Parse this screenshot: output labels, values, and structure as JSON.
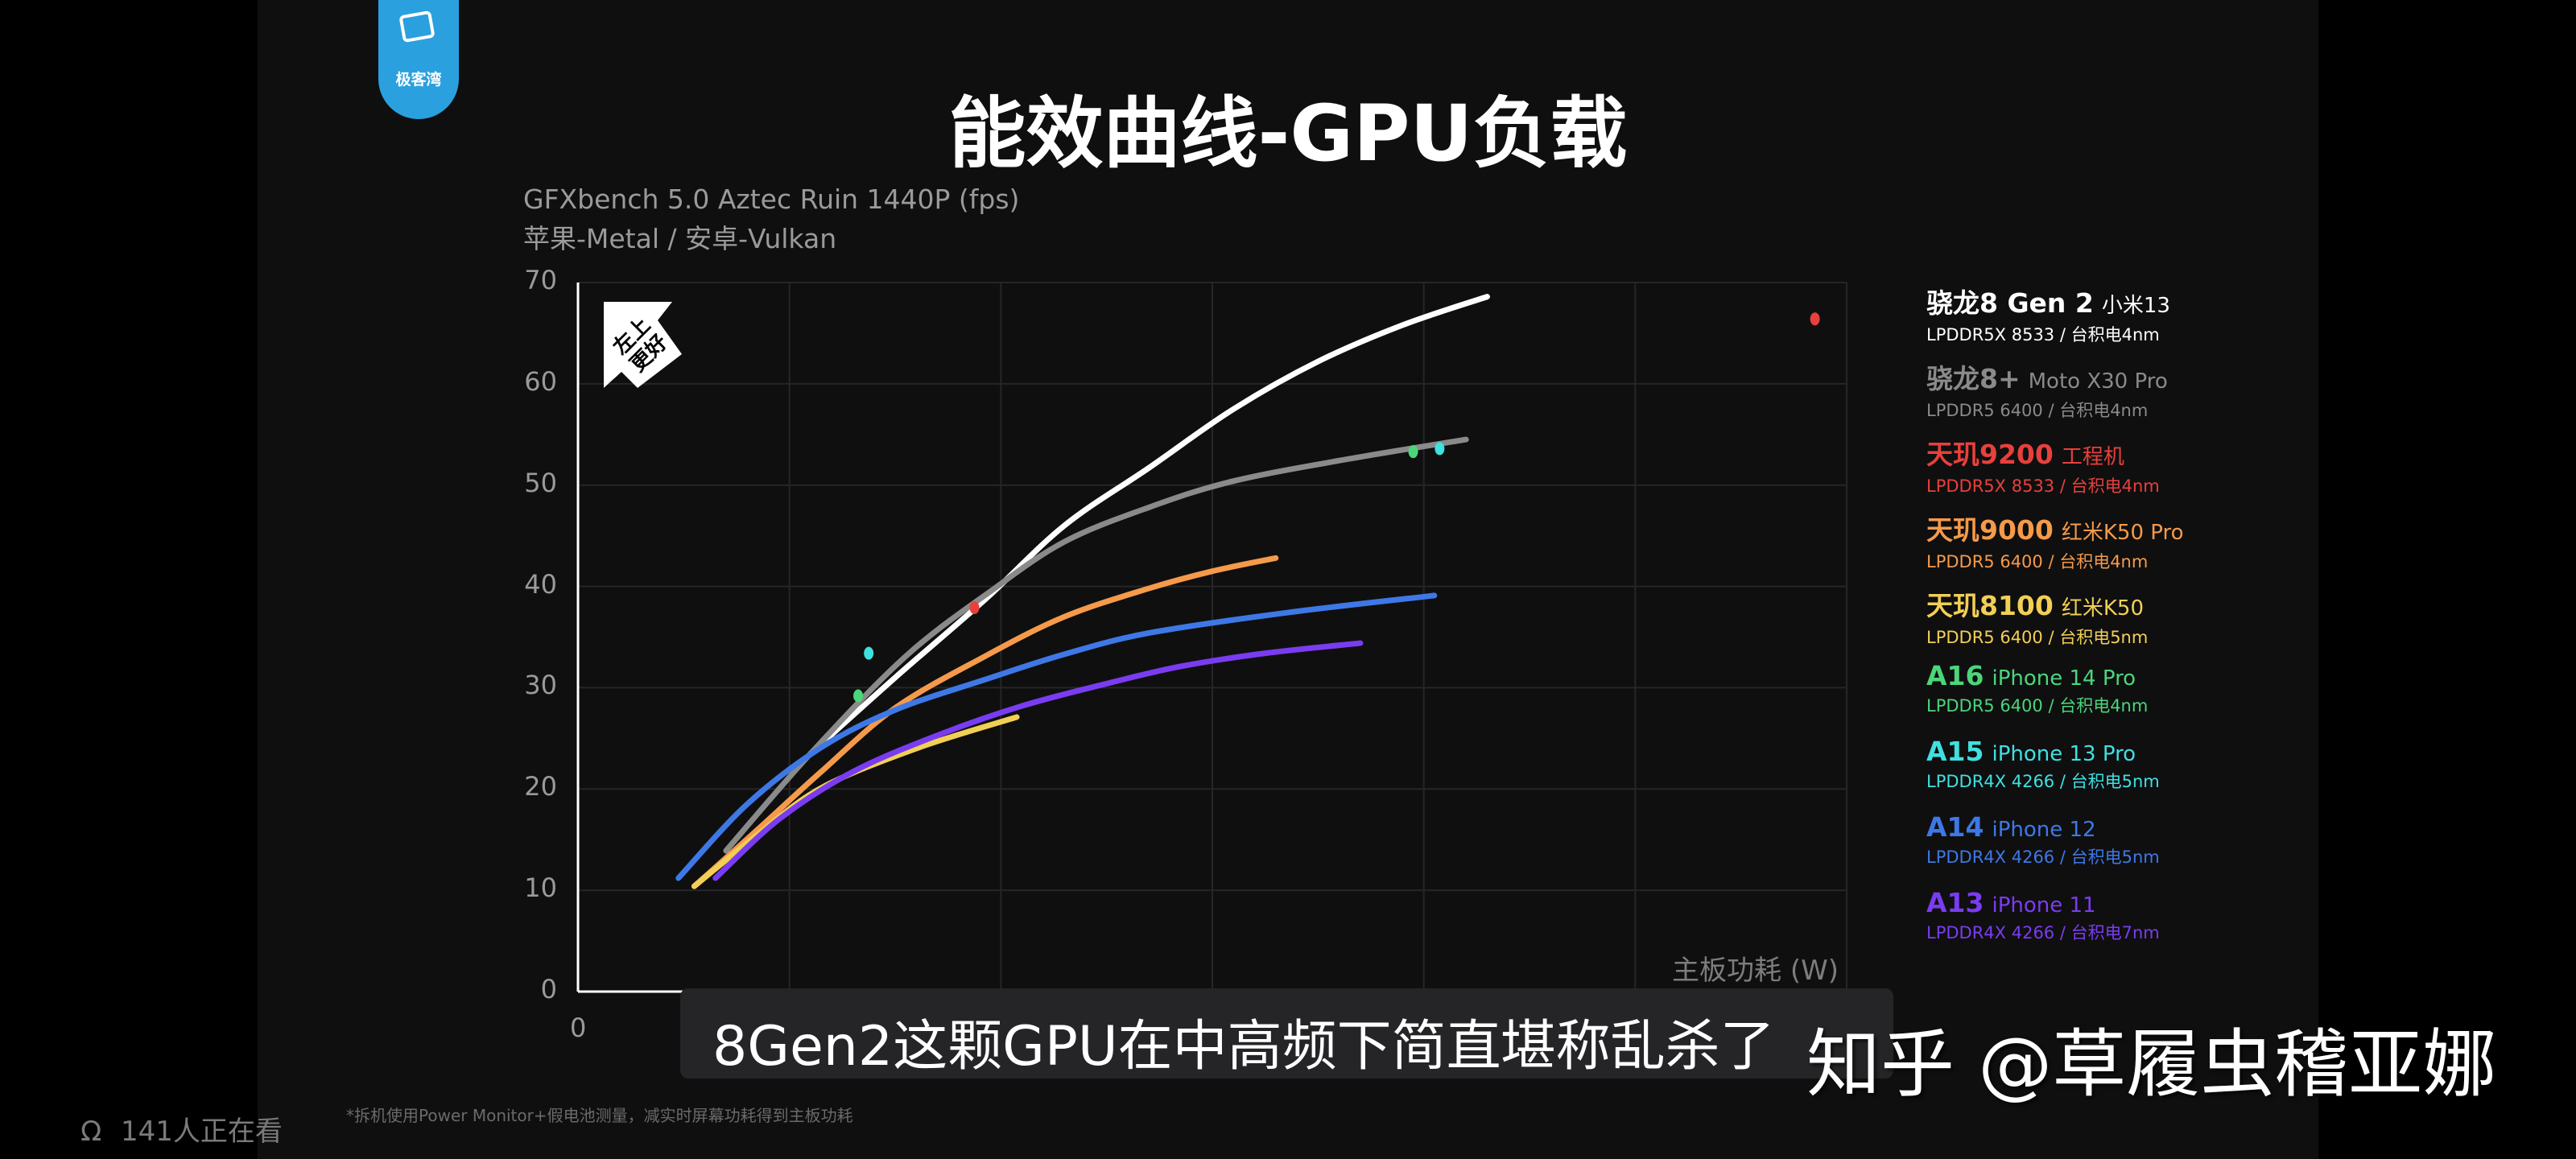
{
  "logo": {
    "name": "极客湾",
    "color": "#2aa0de"
  },
  "title": "能效曲线-GPU负载",
  "subtitle": [
    "GFXbench 5.0 Aztec Ruin 1440P (fps)",
    "苹果-Metal / 安卓-Vulkan"
  ],
  "badge": [
    "左上",
    "更好"
  ],
  "chart_data": {
    "type": "line",
    "xlabel": "主板功耗 (W)",
    "ylabel": "",
    "ylim": [
      0,
      70
    ],
    "xlim": [
      0,
      12
    ],
    "yticks": [
      "0",
      "10",
      "20",
      "30",
      "40",
      "50",
      "60",
      "70"
    ],
    "xticks_visible": [
      "0"
    ],
    "grid": true,
    "legend_position": "right",
    "series": [
      {
        "name": "骁龙8 Gen 2",
        "device": "小米13",
        "spec": "LPDDR5X 8533 / 台积电4nm",
        "color": "#ffffff",
        "points": [
          [
            2.2,
            23.5
          ],
          [
            3.0,
            31
          ],
          [
            3.85,
            38.7
          ],
          [
            4.6,
            46
          ],
          [
            5.4,
            51.7
          ],
          [
            6.2,
            57.5
          ],
          [
            7.0,
            62.2
          ],
          [
            7.8,
            65.8
          ],
          [
            8.6,
            68.6
          ]
        ]
      },
      {
        "name": "骁龙8+",
        "device": "Moto X30 Pro",
        "spec": "LPDDR5 6400 / 台积电4nm",
        "color": "#8a8a8a",
        "points": [
          [
            1.4,
            13.9
          ],
          [
            2.2,
            23.5
          ],
          [
            3.1,
            33.1
          ],
          [
            3.9,
            39.5
          ],
          [
            4.6,
            44.4
          ],
          [
            5.4,
            47.8
          ],
          [
            6.2,
            50.4
          ],
          [
            7.3,
            52.6
          ],
          [
            8.4,
            54.5
          ]
        ]
      },
      {
        "name": "天玑9200",
        "device": "工程机",
        "spec": "LPDDR5X 8533 / 台积电4nm",
        "color": "#e8403c",
        "markers": [
          [
            3.75,
            37.9
          ],
          [
            11.7,
            66.4
          ]
        ]
      },
      {
        "name": "天玑9000",
        "device": "红米K50 Pro",
        "spec": "LPDDR5 6400 / 台积电4nm",
        "color": "#f59a4a",
        "points": [
          [
            1.1,
            10.4
          ],
          [
            1.7,
            16
          ],
          [
            2.3,
            21.7
          ],
          [
            3.0,
            28
          ],
          [
            3.85,
            33.1
          ],
          [
            4.6,
            37
          ],
          [
            5.4,
            39.8
          ],
          [
            6.0,
            41.5
          ],
          [
            6.6,
            42.8
          ]
        ]
      },
      {
        "name": "天玑8100",
        "device": "红米K50",
        "spec": "LPDDR5 6400 / 台积电5nm",
        "color": "#f2cf55",
        "points": [
          [
            1.1,
            10.4
          ],
          [
            1.7,
            15.5
          ],
          [
            2.3,
            20.1
          ],
          [
            3.2,
            24
          ],
          [
            4.15,
            27.1
          ]
        ]
      },
      {
        "name": "A16",
        "device": "iPhone 14 Pro",
        "spec": "LPDDR5 6400 / 台积电4nm",
        "color": "#4bd67a",
        "markers": [
          [
            2.65,
            29.2
          ],
          [
            7.9,
            53.3
          ]
        ]
      },
      {
        "name": "A15",
        "device": "iPhone 13 Pro",
        "spec": "LPDDR4X 4266 / 台积电5nm",
        "color": "#3fe0e0",
        "markers": [
          [
            2.75,
            33.4
          ],
          [
            8.15,
            53.6
          ]
        ]
      },
      {
        "name": "A14",
        "device": "iPhone 12",
        "spec": "LPDDR4X 4266 / 台积电5nm",
        "color": "#3e78e6",
        "points": [
          [
            0.95,
            11.2
          ],
          [
            1.6,
            18.5
          ],
          [
            2.3,
            24.1
          ],
          [
            3.0,
            27.8
          ],
          [
            3.85,
            30.8
          ],
          [
            4.6,
            33.3
          ],
          [
            5.4,
            35.4
          ],
          [
            6.7,
            37.4
          ],
          [
            8.1,
            39.1
          ]
        ]
      },
      {
        "name": "A13",
        "device": "iPhone 11",
        "spec": "LPDDR4X 4266 / 台积电7nm",
        "color": "#7a3cf0",
        "points": [
          [
            1.3,
            11.2
          ],
          [
            1.9,
            17
          ],
          [
            2.6,
            21.7
          ],
          [
            3.4,
            25.3
          ],
          [
            4.2,
            28.2
          ],
          [
            5.0,
            30.4
          ],
          [
            5.7,
            32.1
          ],
          [
            6.5,
            33.4
          ],
          [
            7.4,
            34.4
          ]
        ]
      }
    ]
  },
  "caption": "8Gen2这颗GPU在中高频下简直堪称乱杀了",
  "watermark": "知乎 @草履虫稽亚娜",
  "footnote": "*拆机使用Power Monitor+假电池测量，减实时屏幕功耗得到主板功耗",
  "viewers": "141人正在看"
}
